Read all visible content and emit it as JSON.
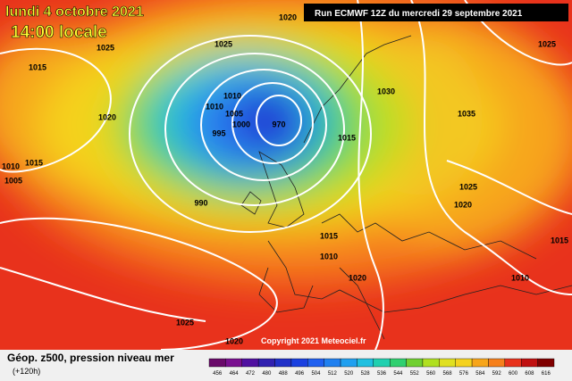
{
  "header": {
    "date": "lundi 4 octobre 2021",
    "time": "14:00 locale",
    "run": "Run ECMWF 12Z du mercredi 29 septembre 2021"
  },
  "footer": {
    "title": "Géop. z500, pression niveau mer",
    "lead": "(+120h)",
    "copyright": "Copyright 2021 Meteociel.fr"
  },
  "isobar_labels": [
    "1020",
    "1025",
    "1025",
    "1015",
    "1025",
    "1010",
    "1010",
    "1005",
    "1000",
    "995",
    "990",
    "970",
    "1030",
    "1035",
    "1020",
    "1015",
    "1010",
    "1005",
    "1015",
    "1010",
    "1020",
    "1025",
    "1020",
    "1015",
    "1010",
    "1025",
    "1020",
    "1015"
  ],
  "colorbar": {
    "labels": [
      "456",
      "464",
      "472",
      "480",
      "488",
      "496",
      "504",
      "512",
      "520",
      "528",
      "536",
      "544",
      "552",
      "560",
      "568",
      "576",
      "584",
      "592",
      "600",
      "608",
      "616"
    ]
  }
}
